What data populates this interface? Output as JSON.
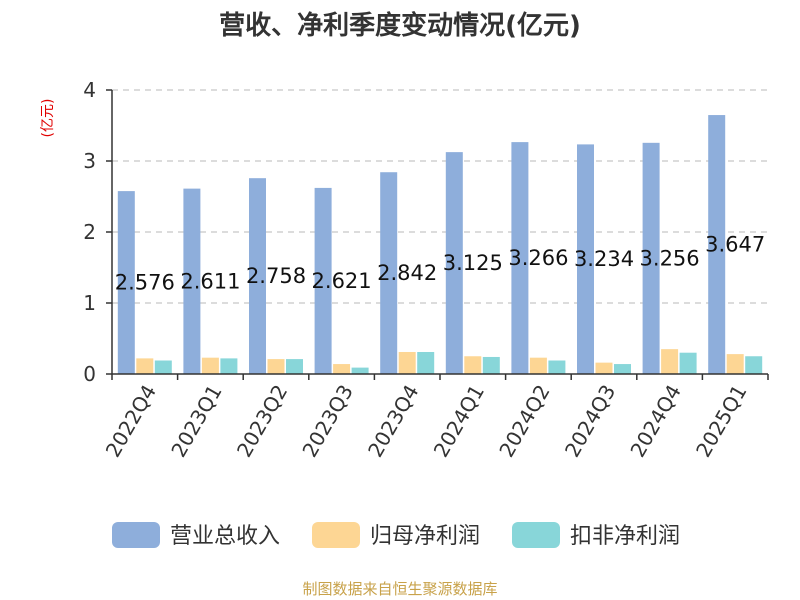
{
  "chart_data": {
    "type": "bar",
    "title": "营收、净利季度变动情况(亿元)",
    "ylabel": "(亿元)",
    "xlabel": "",
    "ylim": [
      0,
      4
    ],
    "yticks": [
      "0",
      "1",
      "2",
      "3",
      "4"
    ],
    "grid": true,
    "legend_position": "bottom",
    "categories": [
      "2022Q4",
      "2023Q1",
      "2023Q2",
      "2023Q3",
      "2023Q4",
      "2024Q1",
      "2024Q2",
      "2024Q3",
      "2024Q4",
      "2025Q1"
    ],
    "series": [
      {
        "name": "营业总收入",
        "color": "#8eaedb",
        "values": [
          2.576,
          2.611,
          2.758,
          2.621,
          2.842,
          3.125,
          3.266,
          3.234,
          3.256,
          3.647
        ],
        "labels": [
          "2.576",
          "2.611",
          "2.758",
          "2.621",
          "2.842",
          "3.125",
          "3.266",
          "3.234",
          "3.256",
          "3.647"
        ]
      },
      {
        "name": "归母净利润",
        "color": "#fdd694",
        "values": [
          0.22,
          0.23,
          0.21,
          0.14,
          0.31,
          0.25,
          0.23,
          0.16,
          0.35,
          0.28
        ]
      },
      {
        "name": "扣非净利润",
        "color": "#88d6d9",
        "values": [
          0.19,
          0.22,
          0.21,
          0.09,
          0.31,
          0.24,
          0.19,
          0.14,
          0.3,
          0.25
        ]
      }
    ]
  },
  "source": "制图数据来自恒生聚源数据库"
}
